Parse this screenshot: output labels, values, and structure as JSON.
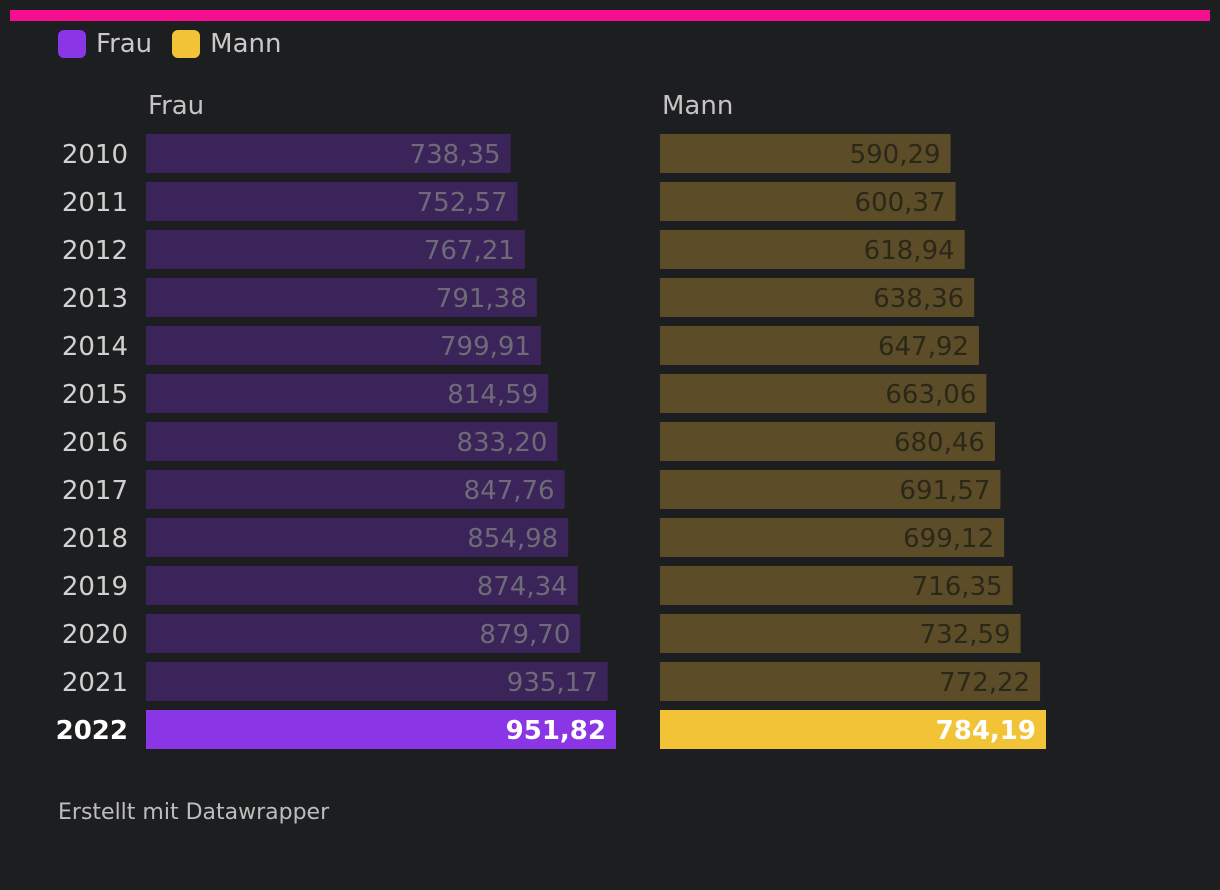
{
  "colors": {
    "accent_bar": "#f50f8e",
    "background": "#1d1e20",
    "frau": "#8a35e6",
    "mann": "#f2c337",
    "frau_muted": "#3a2459",
    "mann_muted": "#5c4d28"
  },
  "legend": [
    {
      "label": "Frau",
      "color": "#8a35e6"
    },
    {
      "label": "Mann",
      "color": "#f2c337"
    }
  ],
  "chart_data": {
    "type": "bar",
    "orientation": "horizontal",
    "categories": [
      "2010",
      "2011",
      "2012",
      "2013",
      "2014",
      "2015",
      "2016",
      "2017",
      "2018",
      "2019",
      "2020",
      "2021",
      "2022"
    ],
    "highlight_category": "2022",
    "series": [
      {
        "name": "Frau",
        "values": [
          738.35,
          752.57,
          767.21,
          791.38,
          799.91,
          814.59,
          833.2,
          847.76,
          854.98,
          874.34,
          879.7,
          935.17,
          951.82
        ],
        "labels": [
          "738,35",
          "752,57",
          "767,21",
          "791,38",
          "799,91",
          "814,59",
          "833,20",
          "847,76",
          "854,98",
          "874,34",
          "879,70",
          "935,17",
          "951,82"
        ]
      },
      {
        "name": "Mann",
        "values": [
          590.29,
          600.37,
          618.94,
          638.36,
          647.92,
          663.06,
          680.46,
          691.57,
          699.12,
          716.35,
          732.59,
          772.22,
          784.19
        ],
        "labels": [
          "590,29",
          "600,37",
          "618,94",
          "638,36",
          "647,92",
          "663,06",
          "680,46",
          "691,57",
          "699,12",
          "716,35",
          "732,59",
          "772,22",
          "784,19"
        ]
      }
    ],
    "xlim": [
      0,
      1000
    ],
    "grid": false,
    "legend_position": "top-left"
  },
  "footer": {
    "credit": "Erstellt mit Datawrapper"
  }
}
